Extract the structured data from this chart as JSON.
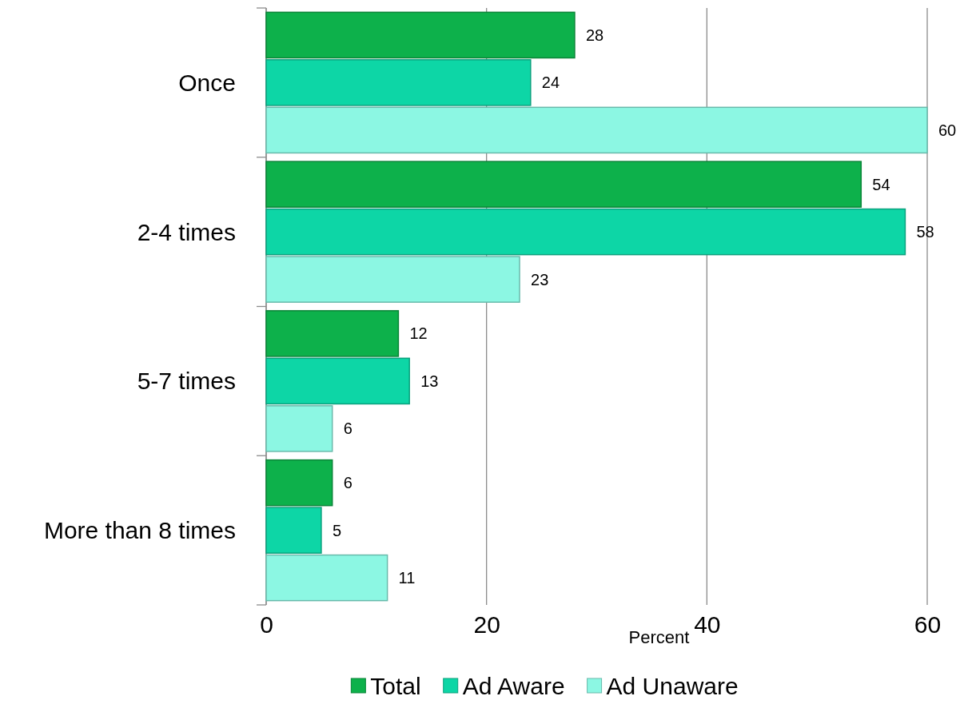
{
  "chart_data": {
    "type": "bar",
    "orientation": "horizontal",
    "xlabel": "Percent",
    "categories": [
      "Once",
      "2-4 times",
      "5-7 times",
      "More than 8 times"
    ],
    "series": [
      {
        "name": "Total",
        "color": "#0db14b",
        "values": [
          28,
          54,
          12,
          6
        ]
      },
      {
        "name": "Ad Aware",
        "color": "#0dd6a6",
        "values": [
          24,
          58,
          13,
          5
        ]
      },
      {
        "name": "Ad Unaware",
        "color": "#8cf7e3",
        "values": [
          60,
          23,
          6,
          11
        ]
      }
    ],
    "xlim": [
      0,
      60
    ],
    "xticks": [
      0,
      20,
      40,
      60
    ],
    "grid": "x",
    "legend": "bottom",
    "data_labels": true
  }
}
